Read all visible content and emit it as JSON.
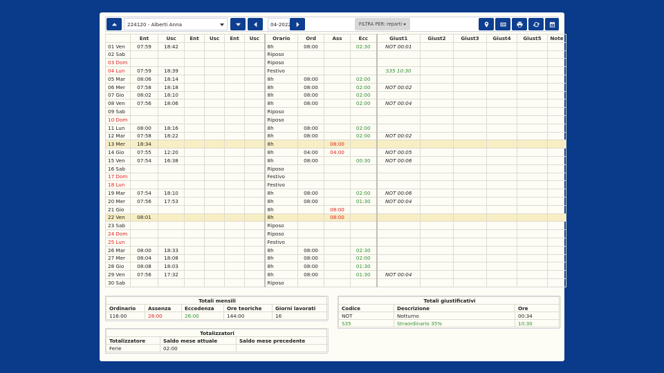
{
  "toolbar": {
    "employee": "224120 - Alberti Anna",
    "month": "04-2022",
    "filter_label": "FILTRA PER: reparti"
  },
  "grid": {
    "headers": [
      "",
      "Ent",
      "Usc",
      "Ent",
      "Usc",
      "Ent",
      "Usc",
      "Orario",
      "Ord",
      "Ass",
      "Ecc",
      "Giust1",
      "Giust2",
      "Giust3",
      "Giust4",
      "Giust5",
      "Note"
    ],
    "rows": [
      {
        "day": "01 Ven",
        "ent1": "07:59",
        "usc1": "18:42",
        "orario": "8h",
        "ord": "08:00",
        "ass": "",
        "ecc": "02:30",
        "giust1": "NOT 00:01",
        "g1c": ""
      },
      {
        "day": "02 Sab",
        "orario": "Riposo"
      },
      {
        "day": "03 Dom",
        "red": true,
        "orario": "Riposo"
      },
      {
        "day": "04 Lun",
        "red": true,
        "ent1": "07:59",
        "usc1": "18:39",
        "orario": "Festivo",
        "giust1": "S35 10:30",
        "g1c": "green"
      },
      {
        "day": "05 Mar",
        "ent1": "08:06",
        "usc1": "18:14",
        "orario": "8h",
        "ord": "08:00",
        "ecc": "02:00"
      },
      {
        "day": "06 Mer",
        "ent1": "07:58",
        "usc1": "18:18",
        "orario": "8h",
        "ord": "08:00",
        "ecc": "02:00",
        "giust1": "NOT 00:02"
      },
      {
        "day": "07 Gio",
        "ent1": "08:02",
        "usc1": "18:10",
        "orario": "8h",
        "ord": "08:00",
        "ecc": "02:00"
      },
      {
        "day": "08 Ven",
        "ent1": "07:56",
        "usc1": "18:06",
        "orario": "8h",
        "ord": "08:00",
        "ecc": "02:00",
        "giust1": "NOT 00:04"
      },
      {
        "day": "09 Sab",
        "orario": "Riposo"
      },
      {
        "day": "10 Dom",
        "red": true,
        "orario": "Riposo"
      },
      {
        "day": "11 Lun",
        "ent1": "08:00",
        "usc1": "18:16",
        "orario": "8h",
        "ord": "08:00",
        "ecc": "02:00"
      },
      {
        "day": "12 Mar",
        "ent1": "07:58",
        "usc1": "18:22",
        "orario": "8h",
        "ord": "08:00",
        "ecc": "02:00",
        "giust1": "NOT 00:02"
      },
      {
        "day": "13 Mer",
        "hl": true,
        "ent1": "18:34",
        "orario": "8h",
        "ass": "08:00"
      },
      {
        "day": "14 Gio",
        "ent1": "07:55",
        "usc1": "12:20",
        "orario": "8h",
        "ord": "04:00",
        "ass": "04:00",
        "giust1": "NOT 00:05"
      },
      {
        "day": "15 Ven",
        "ent1": "07:54",
        "usc1": "16:38",
        "orario": "8h",
        "ord": "08:00",
        "ecc": "00:30",
        "giust1": "NOT 00:06"
      },
      {
        "day": "16 Sab",
        "orario": "Riposo"
      },
      {
        "day": "17 Dom",
        "red": true,
        "orario": "Festivo"
      },
      {
        "day": "18 Lun",
        "red": true,
        "orario": "Festivo"
      },
      {
        "day": "19 Mar",
        "ent1": "07:54",
        "usc1": "18:10",
        "orario": "8h",
        "ord": "08:00",
        "ecc": "02:00",
        "giust1": "NOT 00:06"
      },
      {
        "day": "20 Mer",
        "ent1": "07:56",
        "usc1": "17:53",
        "orario": "8h",
        "ord": "08:00",
        "ecc": "01:30",
        "giust1": "NOT 00:04"
      },
      {
        "day": "21 Gio",
        "orario": "8h",
        "ass": "08:00"
      },
      {
        "day": "22 Ven",
        "hl": true,
        "ent1": "08:01",
        "orario": "8h",
        "ass": "08:00"
      },
      {
        "day": "23 Sab",
        "orario": "Riposo"
      },
      {
        "day": "24 Dom",
        "red": true,
        "orario": "Riposo"
      },
      {
        "day": "25 Lun",
        "red": true,
        "orario": "Festivo"
      },
      {
        "day": "26 Mar",
        "ent1": "08:00",
        "usc1": "18:33",
        "orario": "8h",
        "ord": "08:00",
        "ecc": "02:30"
      },
      {
        "day": "27 Mer",
        "ent1": "08:04",
        "usc1": "18:08",
        "orario": "8h",
        "ord": "08:00",
        "ecc": "02:00"
      },
      {
        "day": "28 Gio",
        "ent1": "08:08",
        "usc1": "18:03",
        "orario": "8h",
        "ord": "08:00",
        "ecc": "01:30"
      },
      {
        "day": "29 Ven",
        "ent1": "07:56",
        "usc1": "17:32",
        "orario": "8h",
        "ord": "08:00",
        "ecc": "01:30",
        "giust1": "NOT 00:04"
      },
      {
        "day": "30 Sab",
        "orario": "Riposo"
      }
    ]
  },
  "totali_mensili": {
    "title": "Totali mensili",
    "headers": [
      "Ordinario",
      "Assenza",
      "Eccedenza",
      "Ore teoriche",
      "Giorni lavorati"
    ],
    "values": [
      "116:00",
      "28:00",
      "26:00",
      "144:00",
      "16"
    ],
    "colors": [
      "",
      "#e02020",
      "#2f8f2f",
      "",
      ""
    ]
  },
  "totalizzatori": {
    "title": "Totalizzatori",
    "headers": [
      "Totalizzatore",
      "Saldo mese attuale",
      "Saldo mese precedente"
    ],
    "values": [
      "Ferie",
      "02:00",
      ""
    ]
  },
  "totali_giustificativi": {
    "title": "Totali giustificativi",
    "headers": [
      "Codice",
      "Descrizione",
      "Ore"
    ],
    "rows": [
      {
        "codice": "NOT",
        "descrizione": "Notturno",
        "ore": "00:34",
        "green": false
      },
      {
        "codice": "S35",
        "descrizione": "Straordinario 35%",
        "ore": "10:30",
        "green": true
      }
    ]
  }
}
